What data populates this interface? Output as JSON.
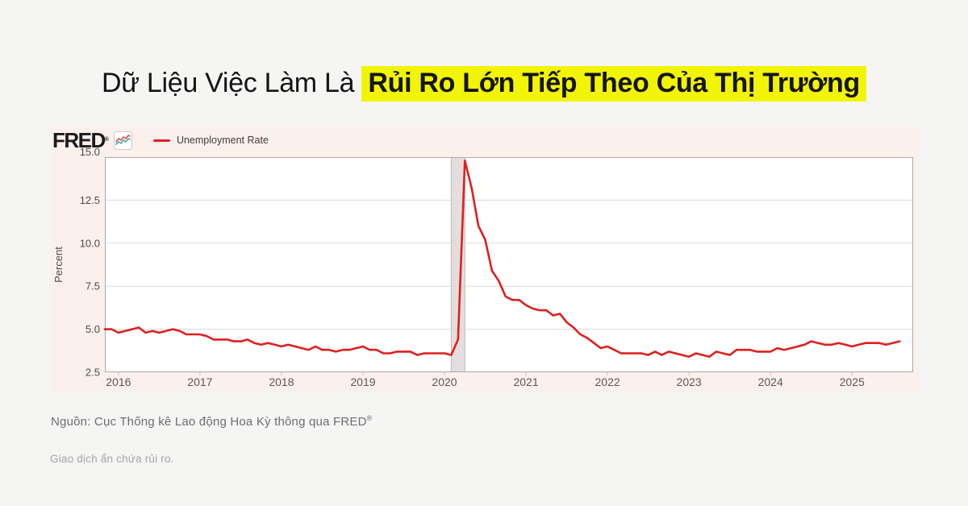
{
  "title": {
    "prefix": "Dữ Liệu Việc Làm Là ",
    "highlight": "Rủi Ro Lớn Tiếp Theo Của Thị Trường",
    "highlight_color": "#f2f405"
  },
  "chart": {
    "brand": "FRED",
    "brand_reg": "®"
  },
  "chart_data": {
    "type": "line",
    "series_name": "Unemployment Rate",
    "ylabel": "Percent",
    "unit": "percent",
    "frequency": "monthly",
    "start": "2015-11",
    "end": "2025-08",
    "x_axis_end": "2025-10",
    "ylim": [
      2.5,
      15.0
    ],
    "y_ticks": [
      15.0,
      12.5,
      10.0,
      7.5,
      5.0,
      2.5
    ],
    "x_ticks": [
      2016,
      2017,
      2018,
      2019,
      2020,
      2021,
      2022,
      2023,
      2024,
      2025
    ],
    "grid": true,
    "legend_position": "top-left",
    "line_color": "#df1f1f",
    "recession_band": {
      "from": "2020-02",
      "to": "2020-04",
      "color": "#e4dede",
      "edge_color": "#bdb7b7"
    },
    "values": [
      5.0,
      5.0,
      4.8,
      4.9,
      5.0,
      5.1,
      4.8,
      4.9,
      4.8,
      4.9,
      5.0,
      4.9,
      4.7,
      4.7,
      4.7,
      4.6,
      4.4,
      4.4,
      4.4,
      4.3,
      4.3,
      4.4,
      4.2,
      4.1,
      4.2,
      4.1,
      4.0,
      4.1,
      4.0,
      3.9,
      3.8,
      4.0,
      3.8,
      3.8,
      3.7,
      3.8,
      3.8,
      3.9,
      4.0,
      3.8,
      3.8,
      3.6,
      3.6,
      3.7,
      3.7,
      3.7,
      3.5,
      3.6,
      3.6,
      3.6,
      3.6,
      3.5,
      4.4,
      14.8,
      13.2,
      11.0,
      10.2,
      8.4,
      7.8,
      6.9,
      6.7,
      6.7,
      6.4,
      6.2,
      6.1,
      6.1,
      5.8,
      5.9,
      5.4,
      5.1,
      4.7,
      4.5,
      4.2,
      3.9,
      4.0,
      3.8,
      3.6,
      3.6,
      3.6,
      3.6,
      3.5,
      3.7,
      3.5,
      3.7,
      3.6,
      3.5,
      3.4,
      3.6,
      3.5,
      3.4,
      3.7,
      3.6,
      3.5,
      3.8,
      3.8,
      3.8,
      3.7,
      3.7,
      3.7,
      3.9,
      3.8,
      3.9,
      4.0,
      4.1,
      4.3,
      4.2,
      4.1,
      4.1,
      4.2,
      4.1,
      4.0,
      4.1,
      4.2,
      4.2,
      4.2,
      4.1,
      4.2,
      4.3
    ]
  },
  "footer": {
    "source": "Nguồn: Cục Thống kê Lao động Hoa Kỳ thông qua FRED",
    "source_reg": "®",
    "disclaimer": "Giao dịch ẩn chứa rủi ro."
  }
}
